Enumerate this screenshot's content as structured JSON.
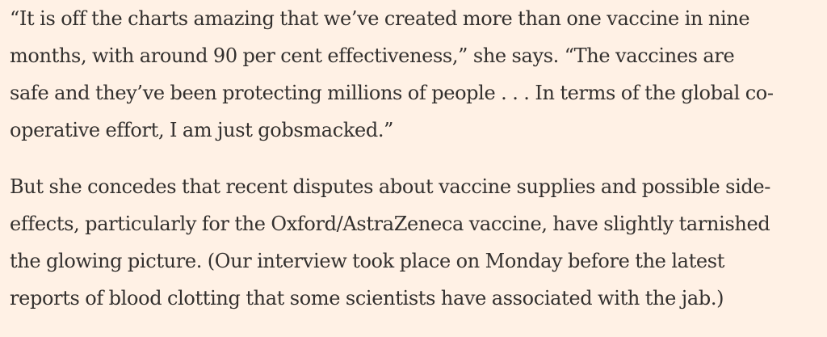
{
  "article": {
    "paragraphs": [
      {
        "lines": [
          "“It is off the charts amazing that we’ve created more than one vaccine in nine",
          "months, with around 90 per cent effectiveness,” she says. “The vaccines are",
          "safe and they’ve been protecting millions of people . . . In terms of the global co-",
          "operative effort, I am just gobsmacked.”"
        ]
      },
      {
        "lines": [
          "But she concedes that recent disputes about vaccine supplies and possible side-",
          "effects, particularly for the Oxford/AstraZeneca vaccine, have slightly tarnished",
          "the glowing picture. (Our interview took place on Monday before the latest",
          "reports of blood clotting that some scientists have associated with the jab.)"
        ]
      }
    ]
  },
  "colors": {
    "background": "#fff1e5",
    "text": "#33302e"
  }
}
